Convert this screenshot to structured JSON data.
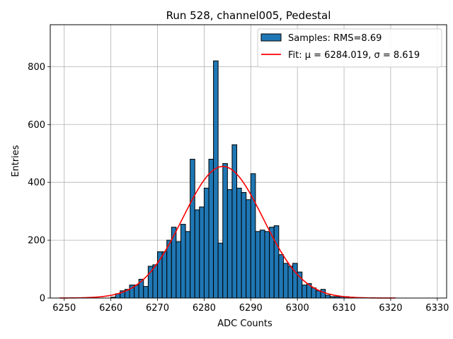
{
  "chart_data": {
    "type": "bar",
    "title": "Run 528, channel005, Pedestal",
    "xlabel": "ADC Counts",
    "ylabel": "Entries",
    "xlim": [
      6247,
      6332
    ],
    "ylim": [
      0,
      945
    ],
    "xticks": [
      6250,
      6260,
      6270,
      6280,
      6290,
      6300,
      6310,
      6320,
      6330
    ],
    "yticks": [
      0,
      200,
      400,
      600,
      800
    ],
    "grid": true,
    "legend_position": "top-right",
    "bin_width": 1,
    "bin_start": 6260,
    "histogram": {
      "name": "Samples: RMS=8.69",
      "color": "#1f77b4",
      "values": [
        3,
        15,
        25,
        30,
        45,
        45,
        65,
        40,
        110,
        115,
        160,
        160,
        200,
        245,
        195,
        255,
        230,
        480,
        305,
        315,
        380,
        480,
        820,
        190,
        465,
        375,
        530,
        380,
        365,
        340,
        430,
        230,
        235,
        230,
        245,
        250,
        150,
        120,
        110,
        120,
        90,
        45,
        50,
        35,
        25,
        30,
        10,
        5,
        5,
        5,
        5,
        3
      ]
    },
    "fit": {
      "name": "Fit: μ = 6284.019, σ = 8.619",
      "color": "#ff0000",
      "mu": 6284.019,
      "sigma": 8.619,
      "amplitude": 455,
      "x_range": [
        6249,
        6321
      ]
    }
  }
}
